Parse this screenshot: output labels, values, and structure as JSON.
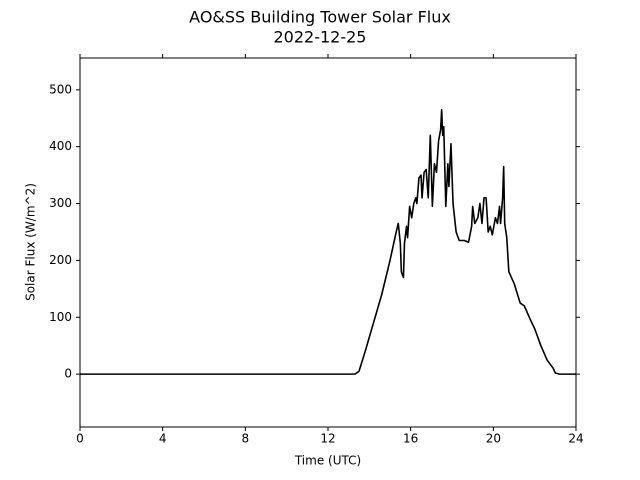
{
  "chart_data": {
    "type": "line",
    "title": "AO&SS Building Tower Solar Flux",
    "subtitle": "2022-12-25",
    "x_label": "Time (UTC)",
    "y_label": "Solar Flux (W/m^2)",
    "xlim": [
      0,
      24
    ],
    "xticks": [
      0,
      4,
      8,
      12,
      16,
      20,
      24
    ],
    "ylim": [
      -93,
      556
    ],
    "yticks": [
      0,
      100,
      200,
      300,
      400,
      500
    ],
    "series": [
      {
        "color": "#000000",
        "x": [
          0,
          13.3,
          13.5,
          13.8,
          14.2,
          14.6,
          15.0,
          15.3,
          15.4,
          15.5,
          15.55,
          15.65,
          15.7,
          15.8,
          15.85,
          15.95,
          16.05,
          16.15,
          16.25,
          16.3,
          16.4,
          16.5,
          16.55,
          16.65,
          16.75,
          16.85,
          16.95,
          17.05,
          17.15,
          17.25,
          17.35,
          17.45,
          17.5,
          17.55,
          17.6,
          17.7,
          17.8,
          17.85,
          17.95,
          18.05,
          18.2,
          18.35,
          18.6,
          18.8,
          18.95,
          19.0,
          19.1,
          19.25,
          19.35,
          19.45,
          19.55,
          19.65,
          19.75,
          19.85,
          19.95,
          20.1,
          20.2,
          20.3,
          20.35,
          20.45,
          20.5,
          20.55,
          20.65,
          20.75,
          21.0,
          21.3,
          21.5,
          21.8,
          22.0,
          22.3,
          22.6,
          22.9,
          23.0,
          23.2,
          24
        ],
        "values": [
          0,
          0,
          5,
          40,
          90,
          140,
          200,
          250,
          265,
          230,
          180,
          170,
          230,
          260,
          240,
          295,
          275,
          300,
          310,
          300,
          345,
          350,
          310,
          355,
          360,
          310,
          420,
          295,
          370,
          355,
          410,
          430,
          465,
          420,
          435,
          295,
          370,
          330,
          405,
          300,
          250,
          235,
          235,
          232,
          260,
          295,
          265,
          275,
          300,
          265,
          310,
          310,
          250,
          260,
          245,
          275,
          265,
          295,
          265,
          310,
          365,
          265,
          240,
          180,
          160,
          125,
          120,
          95,
          80,
          50,
          25,
          10,
          2,
          0,
          0
        ]
      }
    ]
  }
}
